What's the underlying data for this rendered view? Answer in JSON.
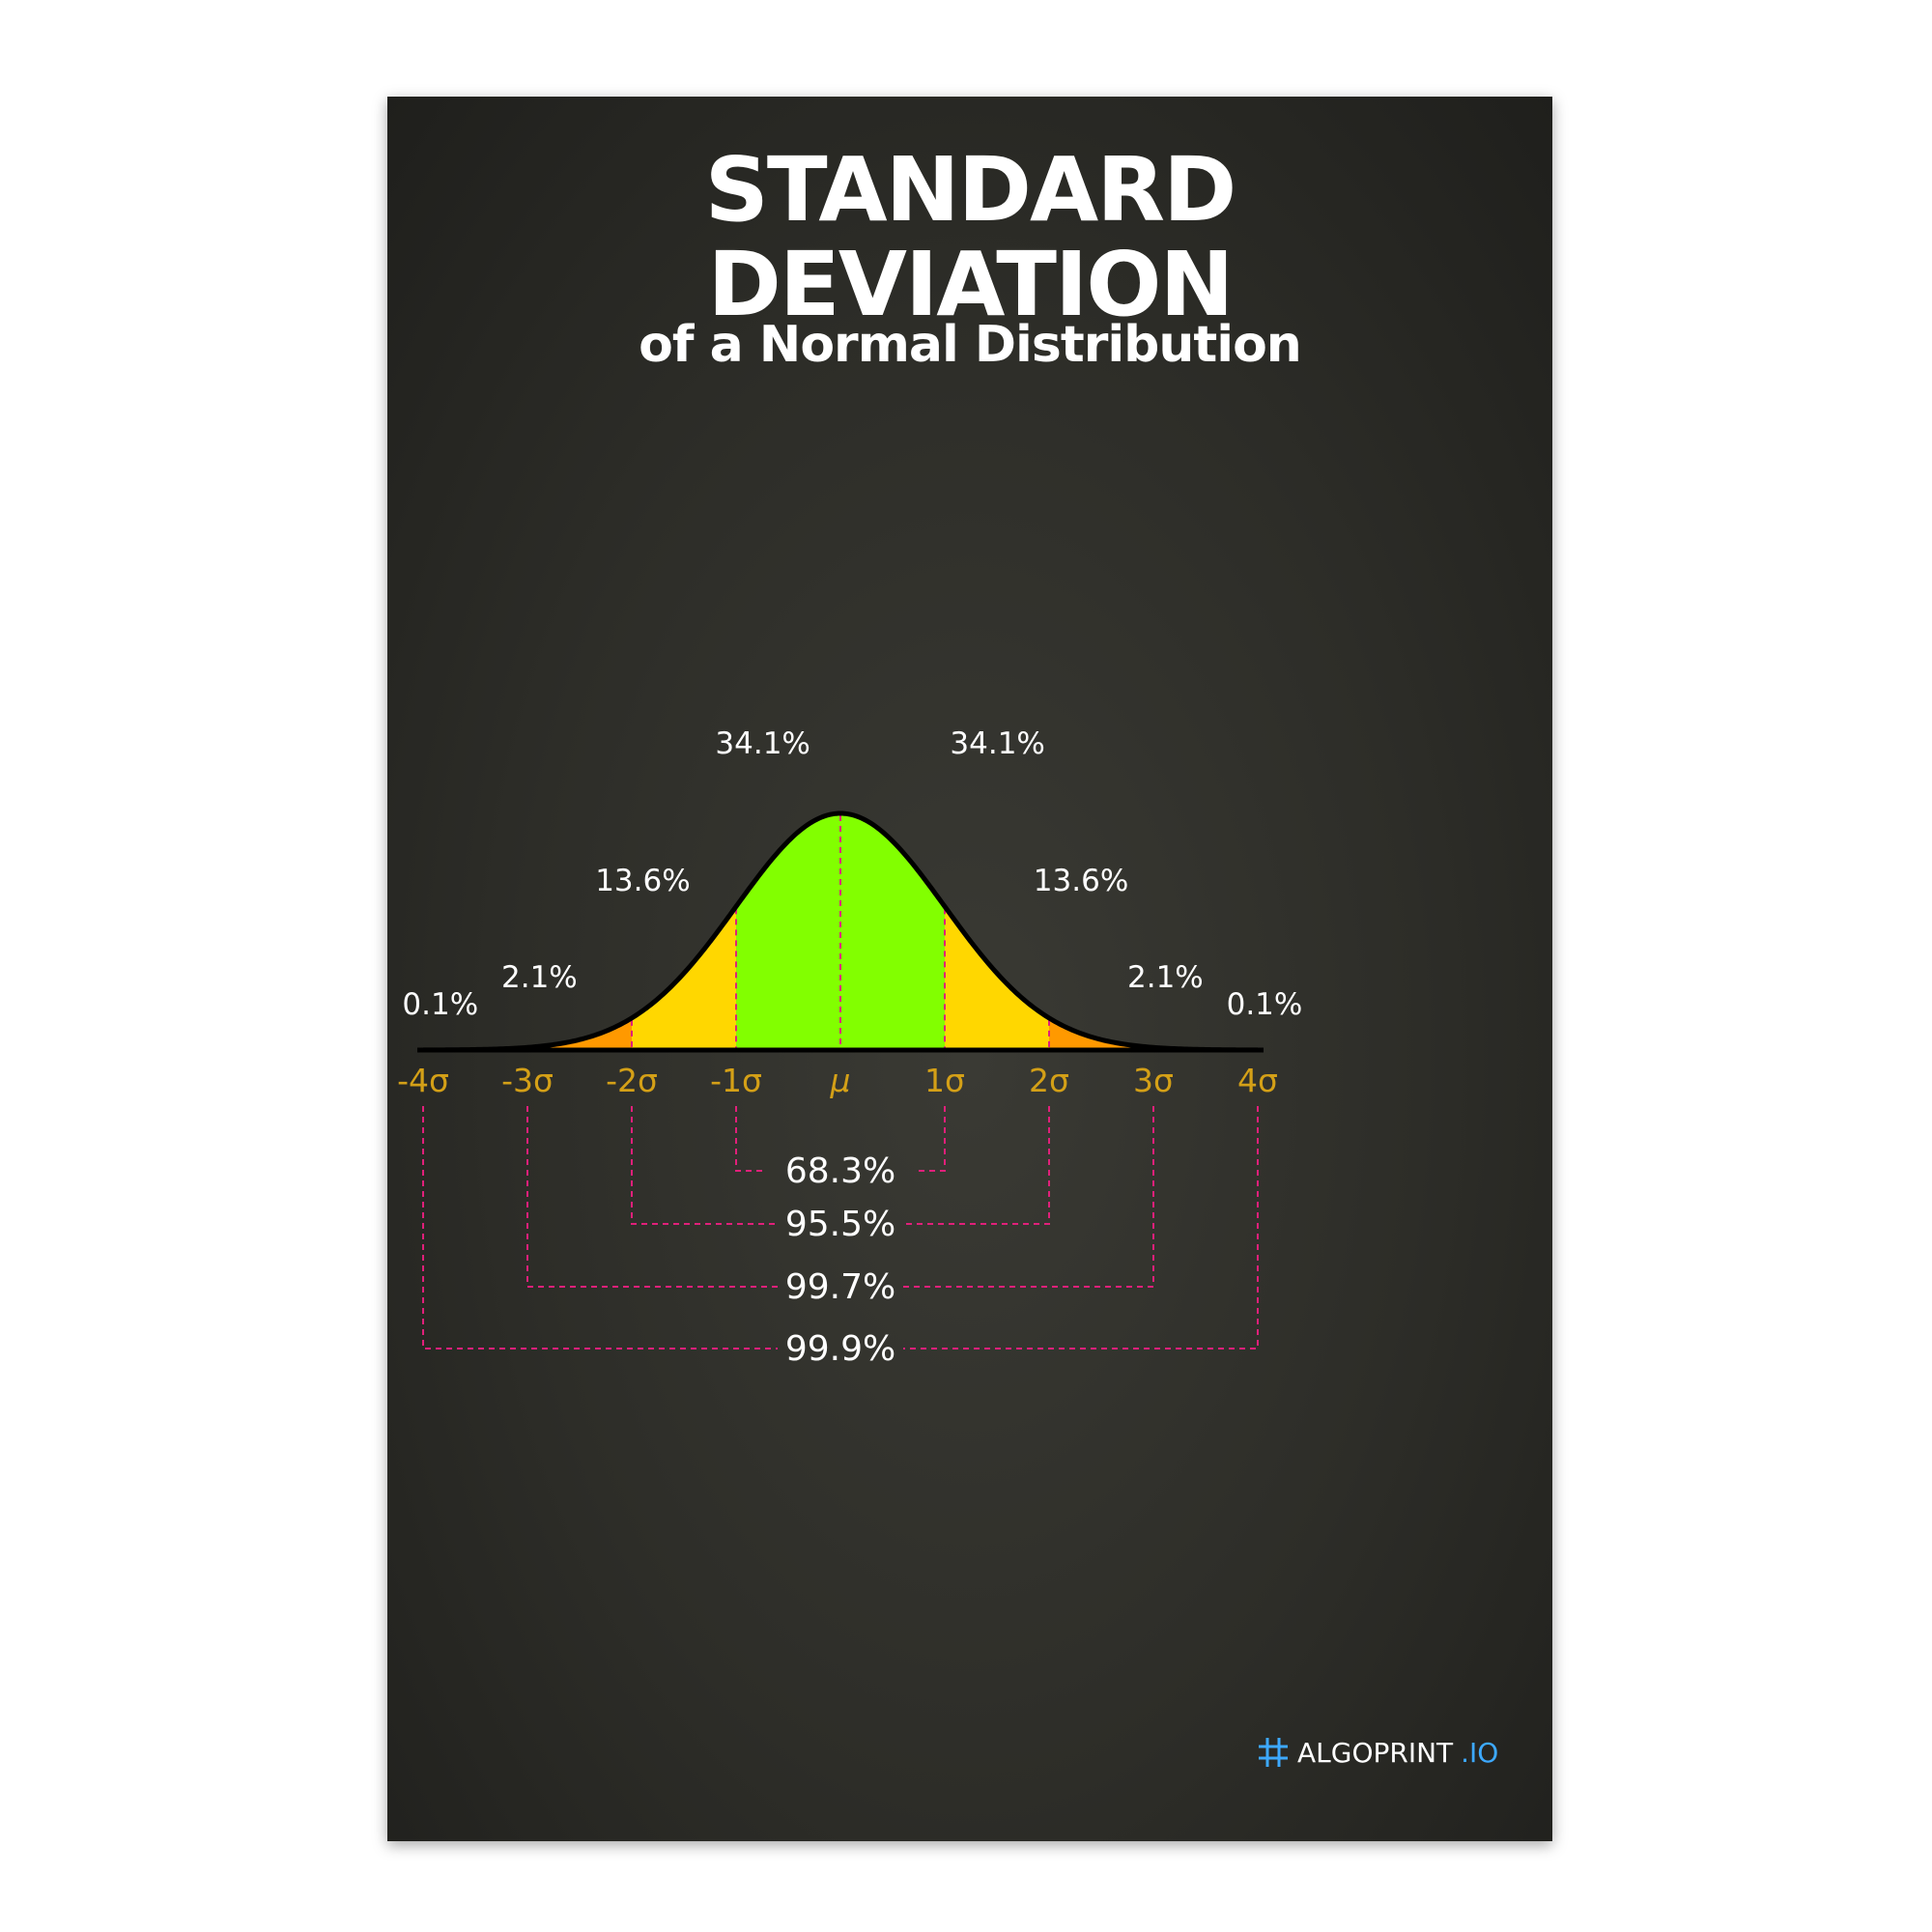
{
  "title_line1": "STANDARD",
  "title_line2": "DEVIATION",
  "subtitle": "of a Normal Distribution",
  "brand": {
    "name": "ALGOPRINT",
    "tld": ".IO",
    "icon": "hash-grid-icon"
  },
  "colors": {
    "background": "#2d2d28",
    "center": "#82ff00",
    "one_to_two": "#ffd700",
    "two_to_three": "#ff9900",
    "three_to_four": "#ff1493",
    "axis_labels": "#d4a017",
    "brackets": "#e0207a",
    "text": "#ffffff"
  },
  "chart_data": {
    "type": "area",
    "title": "STANDARD DEVIATION",
    "subtitle": "of a Normal Distribution",
    "x_ticks": [
      "-4σ",
      "-3σ",
      "-2σ",
      "-1σ",
      "μ",
      "1σ",
      "2σ",
      "3σ",
      "4σ"
    ],
    "xlim": [
      -4,
      4
    ],
    "regions": [
      {
        "from": -4,
        "to": -3,
        "label": "0.1%",
        "color": "#ff1493"
      },
      {
        "from": -3,
        "to": -2,
        "label": "2.1%",
        "color": "#ff9900"
      },
      {
        "from": -2,
        "to": -1,
        "label": "13.6%",
        "color": "#ffd700"
      },
      {
        "from": -1,
        "to": 0,
        "label": "34.1%",
        "color": "#82ff00"
      },
      {
        "from": 0,
        "to": 1,
        "label": "34.1%",
        "color": "#82ff00"
      },
      {
        "from": 1,
        "to": 2,
        "label": "13.6%",
        "color": "#ffd700"
      },
      {
        "from": 2,
        "to": 3,
        "label": "2.1%",
        "color": "#ff9900"
      },
      {
        "from": 3,
        "to": 4,
        "label": "0.1%",
        "color": "#ff1493"
      }
    ],
    "cumulative": [
      {
        "range": 1,
        "label": "68.3%"
      },
      {
        "range": 2,
        "label": "95.5%"
      },
      {
        "range": 3,
        "label": "99.7%"
      },
      {
        "range": 4,
        "label": "99.9%"
      }
    ]
  }
}
